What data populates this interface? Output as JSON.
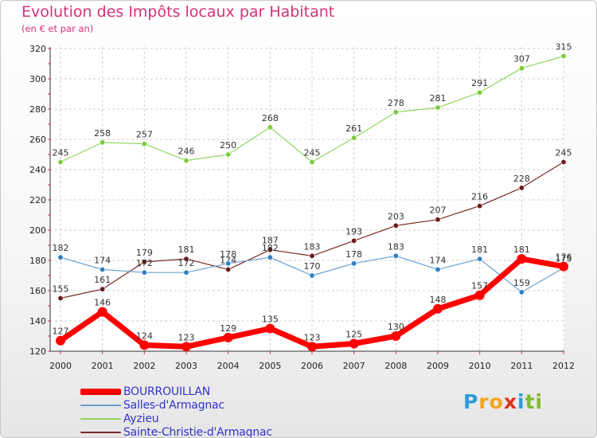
{
  "title": "Evolution des Impôts locaux par Habitant",
  "subtitle": "(en € et par an)",
  "brand": {
    "letters": [
      {
        "ch": "P",
        "color": "#2f9bd6"
      },
      {
        "ch": "r",
        "color": "#f3a51b"
      },
      {
        "ch": "o",
        "color": "#f3a51b"
      },
      {
        "ch": "x",
        "color": "#e0301e"
      },
      {
        "ch": "i",
        "color": "#2f9bd6"
      },
      {
        "ch": "t",
        "color": "#7dbb2f"
      },
      {
        "ch": "i",
        "color": "#7dbb2f"
      }
    ]
  },
  "chart_data": {
    "type": "line",
    "x": [
      "2000",
      "2001",
      "2002",
      "2003",
      "2004",
      "2005",
      "2006",
      "2007",
      "2008",
      "2009",
      "2010",
      "2011",
      "2012"
    ],
    "ylim": [
      120,
      320
    ],
    "yticks": [
      120,
      140,
      160,
      180,
      200,
      220,
      240,
      260,
      280,
      300,
      320
    ],
    "grid": true,
    "legend_position": "bottom-left",
    "series": [
      {
        "name": "Ayzieu",
        "color": "#8fd45e",
        "point": "#7ccc3a",
        "width": 1.2,
        "values": [
          245,
          258,
          257,
          246,
          250,
          268,
          245,
          261,
          278,
          281,
          291,
          307,
          315
        ]
      },
      {
        "name": "Sainte-Christie-d'Armagnac",
        "color": "#7a2a2a",
        "point": "#6b1a1a",
        "width": 1.2,
        "values": [
          155,
          161,
          179,
          181,
          174,
          187,
          183,
          193,
          203,
          207,
          216,
          228,
          245
        ]
      },
      {
        "name": "Salles-d'Armagnac",
        "color": "#6b9fce",
        "point": "#2f7fc4",
        "width": 1.2,
        "values": [
          182,
          174,
          172,
          172,
          178,
          182,
          170,
          178,
          183,
          174,
          181,
          159,
          175
        ]
      },
      {
        "name": "BOURROUILLAN",
        "color": "#ff0000",
        "point": "#ff0000",
        "width": 7,
        "values": [
          127,
          146,
          124,
          123,
          129,
          135,
          123,
          125,
          130,
          148,
          157,
          181,
          176
        ]
      }
    ],
    "legend_order": [
      "BOURROUILLAN",
      "Salles-d'Armagnac",
      "Ayzieu",
      "Sainte-Christie-d'Armagnac"
    ],
    "legend_labels": [
      "BOURROUILLAN",
      "Salles-d'Armagnac",
      "Ayzieu",
      "Sainte-Christie-d'Armagnac"
    ]
  }
}
